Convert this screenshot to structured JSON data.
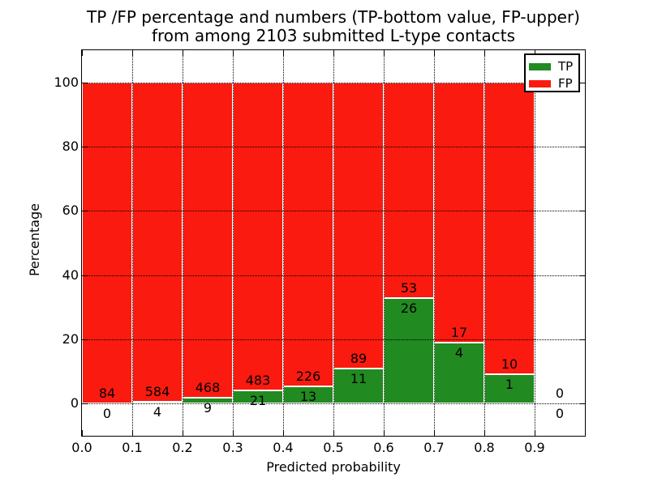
{
  "chart_data": {
    "type": "bar",
    "stacked": true,
    "title_line1": "TP /FP percentage and numbers (TP-bottom value, FP-upper)",
    "title_line2": "from among 2103 submitted L-type contacts",
    "xlabel": "Predicted probability",
    "ylabel": "Percentage",
    "xlim": [
      0.0,
      1.0
    ],
    "ylim": [
      -10,
      110
    ],
    "grid": true,
    "x_tick_labels": [
      "0.0",
      "0.1",
      "0.2",
      "0.3",
      "0.4",
      "0.5",
      "0.6",
      "0.7",
      "0.8",
      "0.9"
    ],
    "x_tick_values": [
      0.0,
      0.1,
      0.2,
      0.3,
      0.4,
      0.5,
      0.6,
      0.7,
      0.8,
      0.9
    ],
    "y_tick_values": [
      0,
      20,
      40,
      60,
      80,
      100
    ],
    "total_contacts": 2103,
    "bins": [
      {
        "x0": 0.0,
        "x1": 0.1,
        "tp_count": 0,
        "fp_count": 84,
        "tp_pct": 0.0,
        "fp_pct": 100.0
      },
      {
        "x0": 0.1,
        "x1": 0.2,
        "tp_count": 4,
        "fp_count": 584,
        "tp_pct": 0.68,
        "fp_pct": 99.32
      },
      {
        "x0": 0.2,
        "x1": 0.3,
        "tp_count": 9,
        "fp_count": 468,
        "tp_pct": 1.89,
        "fp_pct": 98.11
      },
      {
        "x0": 0.3,
        "x1": 0.4,
        "tp_count": 21,
        "fp_count": 483,
        "tp_pct": 4.17,
        "fp_pct": 95.83
      },
      {
        "x0": 0.4,
        "x1": 0.5,
        "tp_count": 13,
        "fp_count": 226,
        "tp_pct": 5.44,
        "fp_pct": 94.56
      },
      {
        "x0": 0.5,
        "x1": 0.6,
        "tp_count": 11,
        "fp_count": 89,
        "tp_pct": 11.0,
        "fp_pct": 89.0
      },
      {
        "x0": 0.6,
        "x1": 0.7,
        "tp_count": 26,
        "fp_count": 53,
        "tp_pct": 32.91,
        "fp_pct": 67.09
      },
      {
        "x0": 0.7,
        "x1": 0.8,
        "tp_count": 4,
        "fp_count": 17,
        "tp_pct": 19.05,
        "fp_pct": 80.95
      },
      {
        "x0": 0.8,
        "x1": 0.9,
        "tp_count": 1,
        "fp_count": 10,
        "tp_pct": 9.09,
        "fp_pct": 90.91
      },
      {
        "x0": 0.9,
        "x1": 1.0,
        "tp_count": 0,
        "fp_count": 0,
        "tp_pct": null,
        "fp_pct": null
      }
    ],
    "legend": [
      {
        "label": "TP",
        "color": "#218a21"
      },
      {
        "label": "FP",
        "color": "#fa1a0f"
      }
    ],
    "colors": {
      "tp": "#218a21",
      "fp": "#fa1a0f",
      "bar_edge": "#ffffff",
      "grid": "#000000",
      "frame": "#000000",
      "background": "#ffffff"
    }
  }
}
